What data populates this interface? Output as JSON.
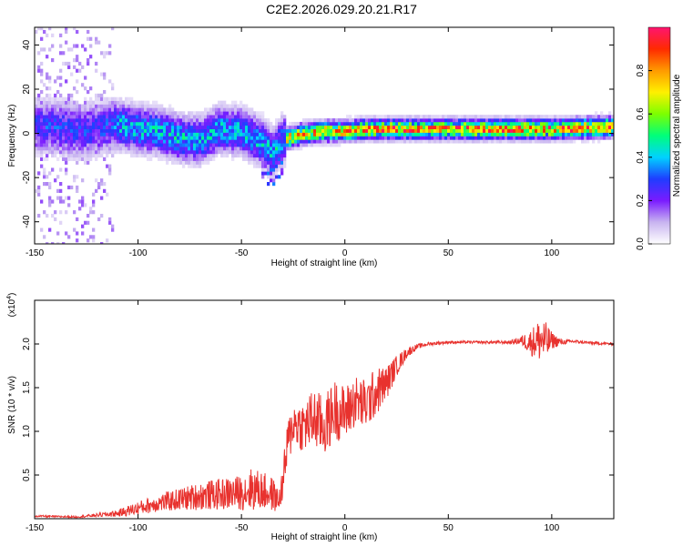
{
  "title": "C2E2.2026.029.20.21.R17",
  "chart_data": [
    {
      "type": "heatmap",
      "xlabel": "Height of straight line (km)",
      "ylabel": "Frequency (Hz)",
      "xlim": [
        -150,
        130
      ],
      "ylim": [
        -50,
        48
      ],
      "xticks": [
        -150,
        -100,
        -50,
        0,
        50,
        100
      ],
      "xtick_labels": [
        "-150",
        "-100",
        "-50",
        "0",
        "50",
        "100"
      ],
      "yticks": [
        -40,
        -20,
        0,
        20,
        40
      ],
      "ytick_labels": [
        "-40",
        "-20",
        "0",
        "20",
        "40"
      ],
      "colorbar": {
        "label": "Normalized spectral amplitude",
        "range": [
          0,
          1
        ],
        "ticks": [
          0.0,
          0.2,
          0.4,
          0.6,
          0.8
        ],
        "tick_labels": [
          "0.0",
          "0.2",
          "0.4",
          "0.6",
          "0.8"
        ]
      },
      "ridge": [
        {
          "x": -150,
          "y": 3
        },
        {
          "x": -140,
          "y": 3
        },
        {
          "x": -130,
          "y": 1
        },
        {
          "x": -120,
          "y": 2
        },
        {
          "x": -110,
          "y": 4
        },
        {
          "x": -100,
          "y": 2
        },
        {
          "x": -90,
          "y": 1
        },
        {
          "x": -80,
          "y": -2
        },
        {
          "x": -70,
          "y": -3
        },
        {
          "x": -60,
          "y": 2
        },
        {
          "x": -50,
          "y": 1
        },
        {
          "x": -40,
          "y": -4
        },
        {
          "x": -35,
          "y": -9
        },
        {
          "x": -30,
          "y": -3
        },
        {
          "x": -20,
          "y": 0
        },
        {
          "x": -10,
          "y": 1
        },
        {
          "x": 0,
          "y": 1
        },
        {
          "x": 10,
          "y": 2
        },
        {
          "x": 20,
          "y": 2
        },
        {
          "x": 50,
          "y": 2
        },
        {
          "x": 100,
          "y": 2
        },
        {
          "x": 130,
          "y": 3
        }
      ]
    },
    {
      "type": "line",
      "xlabel": "Height of straight line (km)",
      "ylabel": "SNR (10 * v/v)",
      "y_multiplier_label": "(x10",
      "y_multiplier_exponent": "4",
      "xlim": [
        -150,
        130
      ],
      "ylim": [
        0,
        2.5
      ],
      "xticks": [
        -150,
        -100,
        -50,
        0,
        50,
        100
      ],
      "xtick_labels": [
        "-150",
        "-100",
        "-50",
        "0",
        "50",
        "100"
      ],
      "yticks": [
        0.5,
        1.0,
        1.5,
        2.0
      ],
      "ytick_labels": [
        "0.5",
        "1.0",
        "1.5",
        "2.0"
      ],
      "series": [
        {
          "color": "#e8322e",
          "x": [
            -150,
            -130,
            -120,
            -110,
            -100,
            -90,
            -80,
            -70,
            -60,
            -50,
            -45,
            -40,
            -35,
            -32,
            -30,
            -28,
            -25,
            -20,
            -15,
            -10,
            -5,
            0,
            5,
            10,
            15,
            20,
            25,
            30,
            35,
            40,
            45,
            50,
            60,
            70,
            80,
            85,
            90,
            95,
            98,
            100,
            105,
            110,
            120,
            130
          ],
          "y": [
            0.03,
            0.02,
            0.04,
            0.06,
            0.12,
            0.18,
            0.22,
            0.26,
            0.28,
            0.3,
            0.34,
            0.32,
            0.28,
            0.2,
            0.4,
            0.8,
            1.1,
            1.05,
            1.15,
            1.05,
            1.25,
            1.2,
            1.35,
            1.3,
            1.45,
            1.55,
            1.75,
            1.9,
            1.97,
            2.0,
            2.01,
            2.02,
            2.02,
            2.02,
            2.02,
            2.04,
            2.02,
            2.05,
            2.02,
            2.04,
            2.02,
            2.03,
            2.01,
            2.0
          ],
          "noise": [
            0.01,
            0.01,
            0.02,
            0.04,
            0.08,
            0.1,
            0.13,
            0.16,
            0.18,
            0.2,
            0.25,
            0.22,
            0.2,
            0.12,
            0.2,
            0.3,
            0.25,
            0.3,
            0.35,
            0.35,
            0.35,
            0.32,
            0.3,
            0.3,
            0.28,
            0.2,
            0.12,
            0.06,
            0.03,
            0.02,
            0.02,
            0.015,
            0.015,
            0.015,
            0.02,
            0.05,
            0.15,
            0.28,
            0.2,
            0.1,
            0.03,
            0.02,
            0.015,
            0.015
          ]
        }
      ]
    }
  ]
}
